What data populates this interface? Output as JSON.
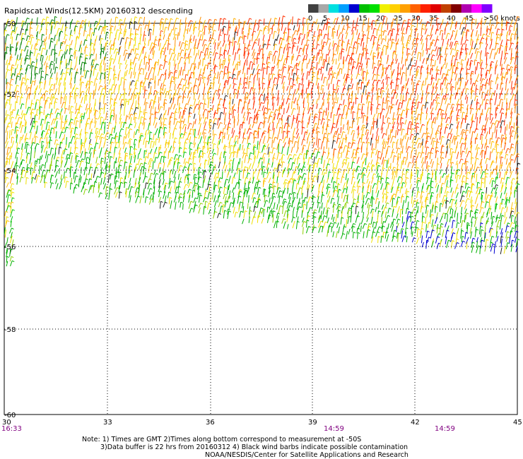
{
  "title": "Rapidscat Winds(12.5KM) 20160312 descending",
  "legend": {
    "labels": [
      "0",
      "5",
      "10",
      "15",
      "20",
      "25",
      "30",
      "35",
      "40",
      "45",
      ">50 knots"
    ],
    "colors": [
      "#404040",
      "#a8a8a8",
      "#00e0e0",
      "#00a0ff",
      "#0000d0",
      "#00c000",
      "#00e000",
      "#f0f000",
      "#ffd000",
      "#ffa000",
      "#ff6000",
      "#ff2000",
      "#e00000",
      "#c04000",
      "#800000",
      "#b000b0",
      "#ff00ff",
      "#8000ff"
    ]
  },
  "axes": {
    "lat_labels": [
      "-50",
      "-52",
      "-54",
      "-56",
      "-58",
      "-60"
    ],
    "lon_labels": [
      "30",
      "33",
      "36",
      "39",
      "42",
      "45"
    ]
  },
  "times": [
    "16:33",
    "14:59",
    "14:59"
  ],
  "notes": {
    "line1": "Note: 1) Times are GMT 2)Times along bottom correspond to measurement at -50S",
    "line2": "3)Data buffer is 22 hrs from 20160312 4) Black wind barbs indicate possible contamination",
    "line3": "NOAA/NESDIS/Center for Satellite Applications and Research"
  }
}
